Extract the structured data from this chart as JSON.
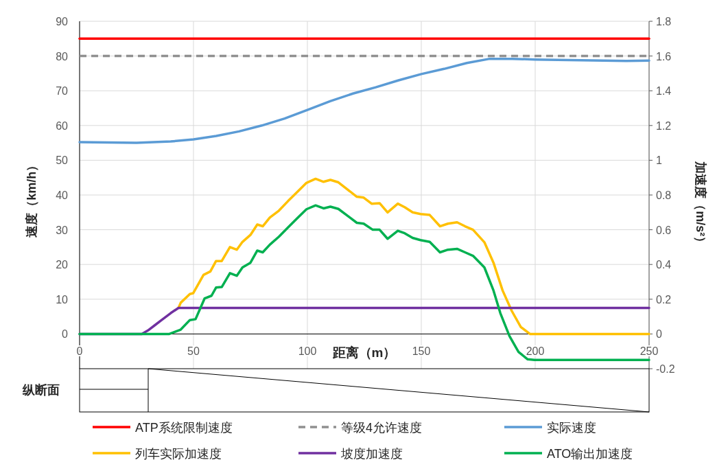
{
  "chart_data": {
    "type": "line",
    "xlabel": "距离（m）",
    "ylabel": "速度（km/h）",
    "y2label": "加速度（m/s²）",
    "xlim": [
      0,
      250
    ],
    "xticks": [
      0,
      50,
      100,
      150,
      200,
      250
    ],
    "ylim": [
      -10,
      90
    ],
    "yticks": [
      0,
      10,
      20,
      30,
      40,
      50,
      60,
      70,
      80,
      90
    ],
    "y2lim": [
      -0.2,
      1.8
    ],
    "y2ticks": [
      -0.2,
      0,
      0.2,
      0.4,
      0.6,
      0.8,
      1,
      1.2,
      1.4,
      1.6,
      1.8
    ],
    "grid": true,
    "legend": "bottom",
    "annotations": [
      "纵断面"
    ],
    "series": [
      {
        "name": "ATP系统限制速度",
        "color": "#ff0000",
        "x": [
          0,
          250
        ],
        "values": [
          85,
          85
        ]
      },
      {
        "name": "等级4允许速度",
        "color": "#909090",
        "line_style": "dashed",
        "x": [
          0,
          250
        ],
        "values": [
          80,
          80
        ]
      },
      {
        "name": "实际速度",
        "color": "#5b9bd5",
        "x": [
          0,
          25,
          40,
          50,
          60,
          70,
          80,
          90,
          100,
          110,
          120,
          130,
          140,
          150,
          160,
          170,
          180,
          190,
          200,
          220,
          240,
          250
        ],
        "values": [
          55.2,
          55,
          55.4,
          56,
          57,
          58.3,
          60,
          62,
          64.5,
          67,
          69.2,
          71,
          73,
          74.8,
          76.3,
          78,
          79.2,
          79.2,
          79,
          78.8,
          78.6,
          78.7
        ]
      },
      {
        "name": "列车实际加速度",
        "color": "#ffc000",
        "axis": "y2",
        "x": [
          43.4,
          44.4,
          48.4,
          49.9,
          54.4,
          57.4,
          59.9,
          62.4,
          66,
          69,
          71.5,
          75,
          78,
          80.4,
          83.5,
          87.5,
          91.5,
          95.5,
          99.6,
          103.6,
          107.1,
          110.1,
          113.6,
          121.7,
          124.7,
          128.2,
          131.7,
          135.2,
          139.7,
          142.7,
          146.2,
          149.7,
          153.7,
          158.2,
          161.7,
          165.7,
          169.2,
          172.7,
          177.7,
          181.7,
          185.7,
          189.7,
          193.7,
          197.7,
          250
        ],
        "values": [
          0.15,
          0.18,
          0.23,
          0.235,
          0.34,
          0.36,
          0.42,
          0.42,
          0.5,
          0.485,
          0.53,
          0.57,
          0.63,
          0.62,
          0.67,
          0.71,
          0.765,
          0.817,
          0.87,
          0.893,
          0.876,
          0.887,
          0.873,
          0.79,
          0.785,
          0.75,
          0.753,
          0.7,
          0.75,
          0.73,
          0.7,
          0.69,
          0.685,
          0.62,
          0.635,
          0.643,
          0.62,
          0.6,
          0.528,
          0.41,
          0.25,
          0.133,
          0.04,
          0,
          0
        ]
      },
      {
        "name": "坡度加速度",
        "color": "#7030a0",
        "axis": "y2",
        "x": [
          0,
          27.3,
          30,
          33,
          36,
          40,
          43.4,
          250
        ],
        "values": [
          0,
          0,
          0.02,
          0.05,
          0.08,
          0.12,
          0.15,
          0.15
        ]
      },
      {
        "name": "ATO输出加速度",
        "color": "#00b050",
        "axis": "y2",
        "x": [
          0,
          39.4,
          44.4,
          48.4,
          50.9,
          54.9,
          57.9,
          59.9,
          62.4,
          66,
          69,
          71.5,
          75,
          78,
          80.4,
          83.5,
          87.5,
          91.5,
          95.5,
          99.6,
          103.6,
          107.1,
          110.1,
          113.6,
          121.7,
          124.7,
          128.7,
          131.7,
          135.2,
          139.7,
          142.7,
          146.2,
          149.7,
          153.7,
          158.2,
          161.7,
          165.7,
          169.2,
          172.7,
          177.7,
          181.7,
          184.7,
          188.7,
          192.7,
          196.7,
          199.7,
          250
        ],
        "values": [
          0,
          0,
          0.025,
          0.08,
          0.085,
          0.205,
          0.22,
          0.267,
          0.27,
          0.35,
          0.335,
          0.383,
          0.41,
          0.48,
          0.47,
          0.514,
          0.56,
          0.613,
          0.666,
          0.718,
          0.74,
          0.723,
          0.733,
          0.72,
          0.64,
          0.635,
          0.6,
          0.6,
          0.548,
          0.594,
          0.58,
          0.553,
          0.54,
          0.53,
          0.47,
          0.485,
          0.49,
          0.47,
          0.45,
          0.383,
          0.25,
          0.12,
          -0.012,
          -0.104,
          -0.146,
          -0.15,
          -0.15
        ]
      }
    ]
  }
}
